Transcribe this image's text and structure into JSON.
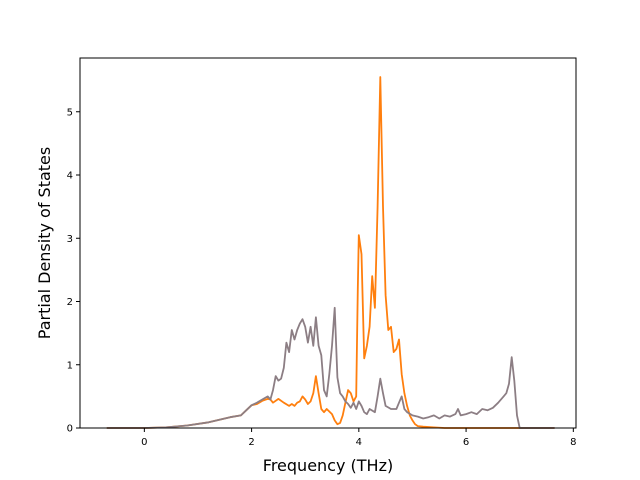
{
  "chart_data": {
    "type": "line",
    "title": "",
    "xlabel": "Frequency (THz)",
    "ylabel": "Partial Density of States",
    "xlim": [
      -1.2,
      8.05
    ],
    "ylim": [
      0,
      5.85
    ],
    "xticks": [
      0,
      2,
      4,
      6,
      8
    ],
    "yticks": [
      0,
      1,
      2,
      3,
      4,
      5
    ],
    "grid": false,
    "legend": "none",
    "series": [
      {
        "color": "#ff7f0e",
        "x": [
          -0.7,
          0.0,
          0.4,
          0.8,
          1.2,
          1.6,
          1.8,
          1.9,
          2.0,
          2.1,
          2.2,
          2.3,
          2.35,
          2.4,
          2.5,
          2.6,
          2.7,
          2.75,
          2.8,
          2.85,
          2.9,
          2.95,
          3.0,
          3.05,
          3.1,
          3.15,
          3.2,
          3.25,
          3.3,
          3.35,
          3.4,
          3.5,
          3.55,
          3.6,
          3.65,
          3.7,
          3.75,
          3.8,
          3.85,
          3.9,
          3.95,
          3.98,
          4.0,
          4.05,
          4.1,
          4.15,
          4.2,
          4.25,
          4.3,
          4.35,
          4.4,
          4.45,
          4.5,
          4.55,
          4.6,
          4.65,
          4.7,
          4.75,
          4.8,
          4.85,
          4.9,
          4.95,
          5.0,
          5.05,
          5.1,
          5.2,
          5.4,
          5.6,
          5.8,
          6.0,
          6.2,
          6.4,
          6.6,
          6.8,
          6.85,
          6.9,
          6.95,
          7.0,
          7.65
        ],
        "y": [
          0.0,
          0.0,
          0.01,
          0.04,
          0.09,
          0.17,
          0.2,
          0.28,
          0.36,
          0.38,
          0.43,
          0.46,
          0.45,
          0.4,
          0.46,
          0.4,
          0.35,
          0.38,
          0.35,
          0.4,
          0.42,
          0.5,
          0.45,
          0.38,
          0.42,
          0.55,
          0.82,
          0.55,
          0.3,
          0.25,
          0.3,
          0.22,
          0.12,
          0.06,
          0.08,
          0.2,
          0.4,
          0.6,
          0.55,
          0.42,
          0.5,
          2.2,
          3.05,
          2.75,
          1.1,
          1.3,
          1.6,
          2.4,
          1.9,
          3.5,
          5.55,
          3.5,
          2.1,
          1.55,
          1.6,
          1.2,
          1.25,
          1.4,
          0.85,
          0.55,
          0.35,
          0.2,
          0.12,
          0.06,
          0.03,
          0.02,
          0.01,
          0.0,
          0.0,
          0.0,
          0.0,
          0.0,
          0.0,
          0.0,
          0.0,
          0.0,
          0.0,
          0.0,
          0.0
        ]
      },
      {
        "color": "#8c7e84",
        "x": [
          -0.7,
          0.0,
          0.4,
          0.8,
          1.2,
          1.6,
          1.8,
          1.9,
          2.0,
          2.1,
          2.2,
          2.3,
          2.35,
          2.4,
          2.45,
          2.5,
          2.55,
          2.6,
          2.65,
          2.7,
          2.75,
          2.8,
          2.85,
          2.9,
          2.95,
          3.0,
          3.05,
          3.1,
          3.15,
          3.2,
          3.25,
          3.3,
          3.35,
          3.4,
          3.45,
          3.5,
          3.55,
          3.6,
          3.65,
          3.7,
          3.75,
          3.8,
          3.85,
          3.9,
          3.95,
          4.0,
          4.05,
          4.1,
          4.15,
          4.2,
          4.3,
          4.35,
          4.4,
          4.45,
          4.5,
          4.6,
          4.7,
          4.75,
          4.8,
          4.85,
          4.9,
          5.0,
          5.1,
          5.2,
          5.3,
          5.4,
          5.5,
          5.6,
          5.7,
          5.8,
          5.85,
          5.9,
          6.0,
          6.1,
          6.2,
          6.3,
          6.4,
          6.5,
          6.6,
          6.7,
          6.75,
          6.8,
          6.85,
          6.9,
          6.95,
          7.0,
          7.65
        ],
        "y": [
          0.0,
          0.0,
          0.01,
          0.04,
          0.09,
          0.17,
          0.2,
          0.28,
          0.36,
          0.4,
          0.45,
          0.5,
          0.45,
          0.6,
          0.82,
          0.75,
          0.78,
          0.95,
          1.35,
          1.2,
          1.55,
          1.4,
          1.55,
          1.65,
          1.72,
          1.6,
          1.35,
          1.6,
          1.3,
          1.75,
          1.3,
          1.15,
          0.6,
          0.5,
          0.85,
          1.3,
          1.9,
          0.8,
          0.55,
          0.5,
          0.42,
          0.38,
          0.32,
          0.4,
          0.3,
          0.42,
          0.35,
          0.25,
          0.22,
          0.3,
          0.25,
          0.5,
          0.78,
          0.55,
          0.35,
          0.3,
          0.3,
          0.4,
          0.5,
          0.3,
          0.25,
          0.2,
          0.18,
          0.15,
          0.17,
          0.2,
          0.15,
          0.2,
          0.18,
          0.22,
          0.3,
          0.2,
          0.22,
          0.25,
          0.22,
          0.3,
          0.28,
          0.32,
          0.4,
          0.5,
          0.55,
          0.7,
          1.12,
          0.75,
          0.2,
          0.0,
          0.0
        ]
      }
    ]
  }
}
